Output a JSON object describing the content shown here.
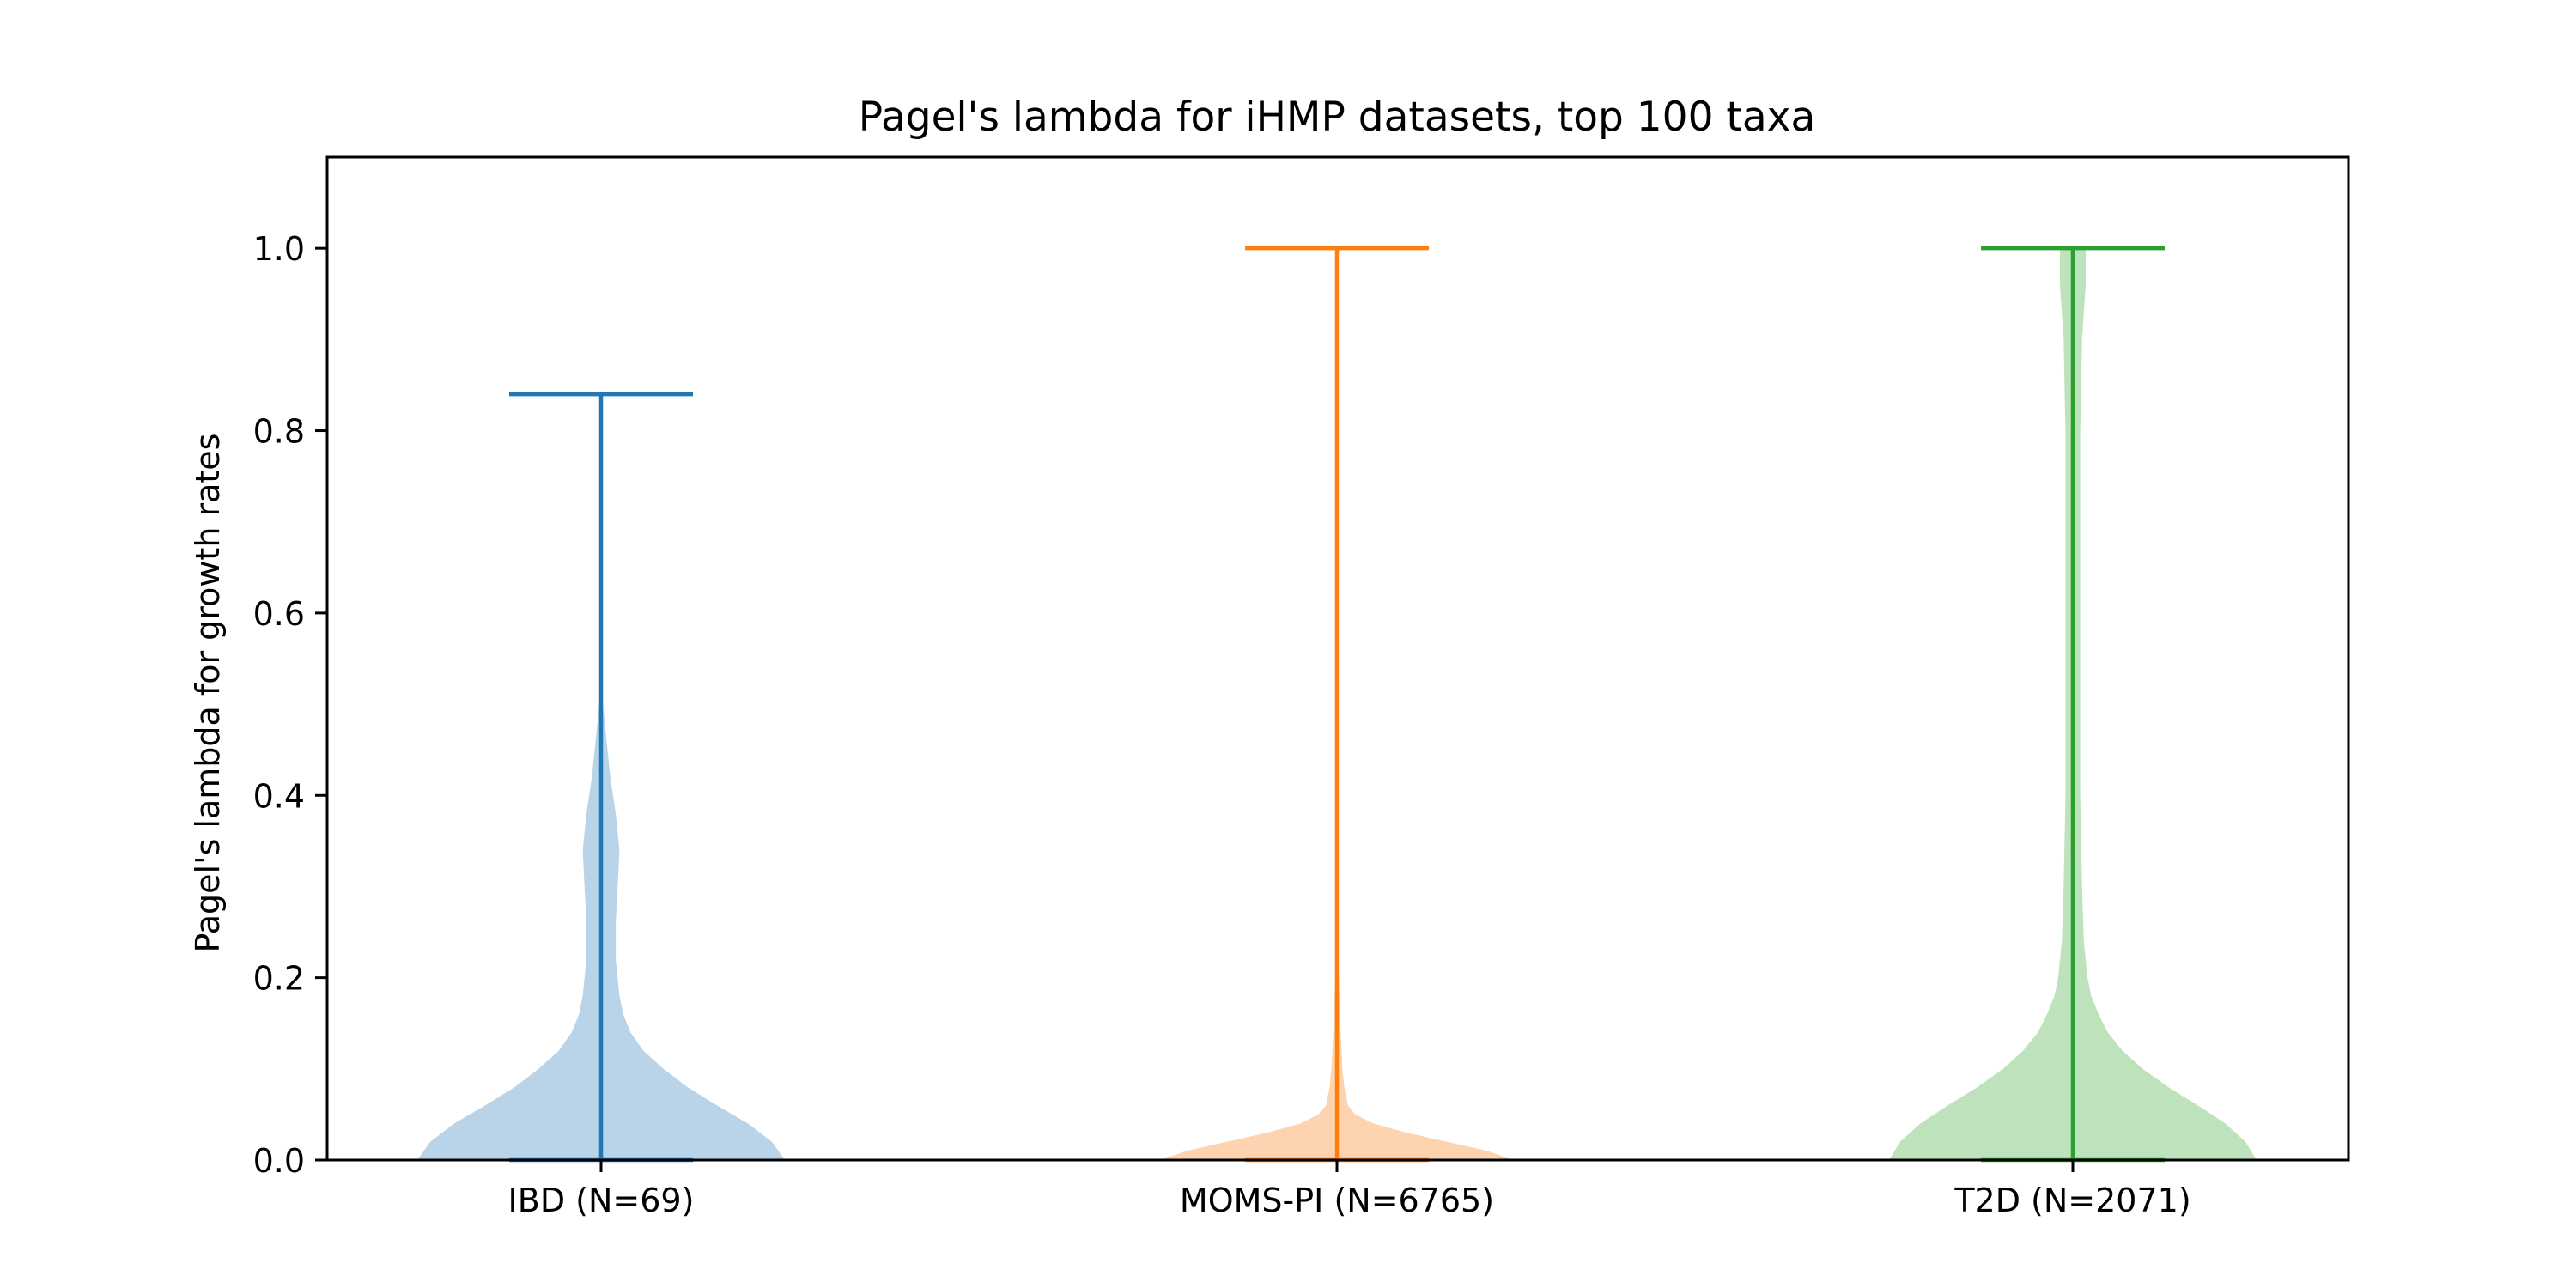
{
  "chart_data": {
    "type": "violin",
    "title": "Pagel's lambda for iHMP datasets, top 100 taxa",
    "xlabel": "",
    "ylabel": "Pagel's lambda for growth rates",
    "ylim": [
      0,
      1.1
    ],
    "yticks": [
      "0.0",
      "0.2",
      "0.4",
      "0.6",
      "0.8",
      "1.0"
    ],
    "categories": [
      "IBD (N=69)",
      "MOMS-PI (N=6765)",
      "T2D (N=2071)"
    ],
    "grid": false,
    "legend": "none",
    "series": [
      {
        "category": "IBD (N=69)",
        "color": "#1f77b4",
        "fill": "#b9d4e8",
        "min": 0.0,
        "max": 0.84,
        "density": [
          [
            0.0,
            1.0
          ],
          [
            0.02,
            0.93
          ],
          [
            0.04,
            0.8
          ],
          [
            0.06,
            0.63
          ],
          [
            0.08,
            0.47
          ],
          [
            0.1,
            0.34
          ],
          [
            0.12,
            0.23
          ],
          [
            0.14,
            0.16
          ],
          [
            0.16,
            0.12
          ],
          [
            0.18,
            0.1
          ],
          [
            0.22,
            0.08
          ],
          [
            0.26,
            0.08
          ],
          [
            0.3,
            0.09
          ],
          [
            0.34,
            0.1
          ],
          [
            0.38,
            0.08
          ],
          [
            0.42,
            0.05
          ],
          [
            0.46,
            0.03
          ],
          [
            0.5,
            0.01
          ]
        ]
      },
      {
        "category": "MOMS-PI (N=6765)",
        "color": "#ff7f0e",
        "fill": "#fed3b0",
        "min": 0.0,
        "max": 1.0,
        "density": [
          [
            0.0,
            0.96
          ],
          [
            0.01,
            0.82
          ],
          [
            0.02,
            0.6
          ],
          [
            0.03,
            0.38
          ],
          [
            0.04,
            0.2
          ],
          [
            0.05,
            0.1
          ],
          [
            0.06,
            0.06
          ],
          [
            0.08,
            0.04
          ],
          [
            0.1,
            0.03
          ],
          [
            0.14,
            0.02
          ],
          [
            0.2,
            0.01
          ],
          [
            0.26,
            0.004
          ]
        ]
      },
      {
        "category": "T2D (N=2071)",
        "color": "#2ca02c",
        "fill": "#bee3bc",
        "min": 0.0,
        "max": 1.0,
        "density": [
          [
            0.0,
            1.0
          ],
          [
            0.02,
            0.94
          ],
          [
            0.04,
            0.83
          ],
          [
            0.06,
            0.68
          ],
          [
            0.08,
            0.52
          ],
          [
            0.1,
            0.38
          ],
          [
            0.12,
            0.27
          ],
          [
            0.14,
            0.19
          ],
          [
            0.16,
            0.14
          ],
          [
            0.18,
            0.1
          ],
          [
            0.2,
            0.08
          ],
          [
            0.24,
            0.06
          ],
          [
            0.3,
            0.05
          ],
          [
            0.4,
            0.04
          ],
          [
            0.5,
            0.04
          ],
          [
            0.6,
            0.04
          ],
          [
            0.7,
            0.04
          ],
          [
            0.8,
            0.04
          ],
          [
            0.9,
            0.05
          ],
          [
            0.96,
            0.07
          ],
          [
            1.0,
            0.07
          ]
        ]
      }
    ]
  }
}
